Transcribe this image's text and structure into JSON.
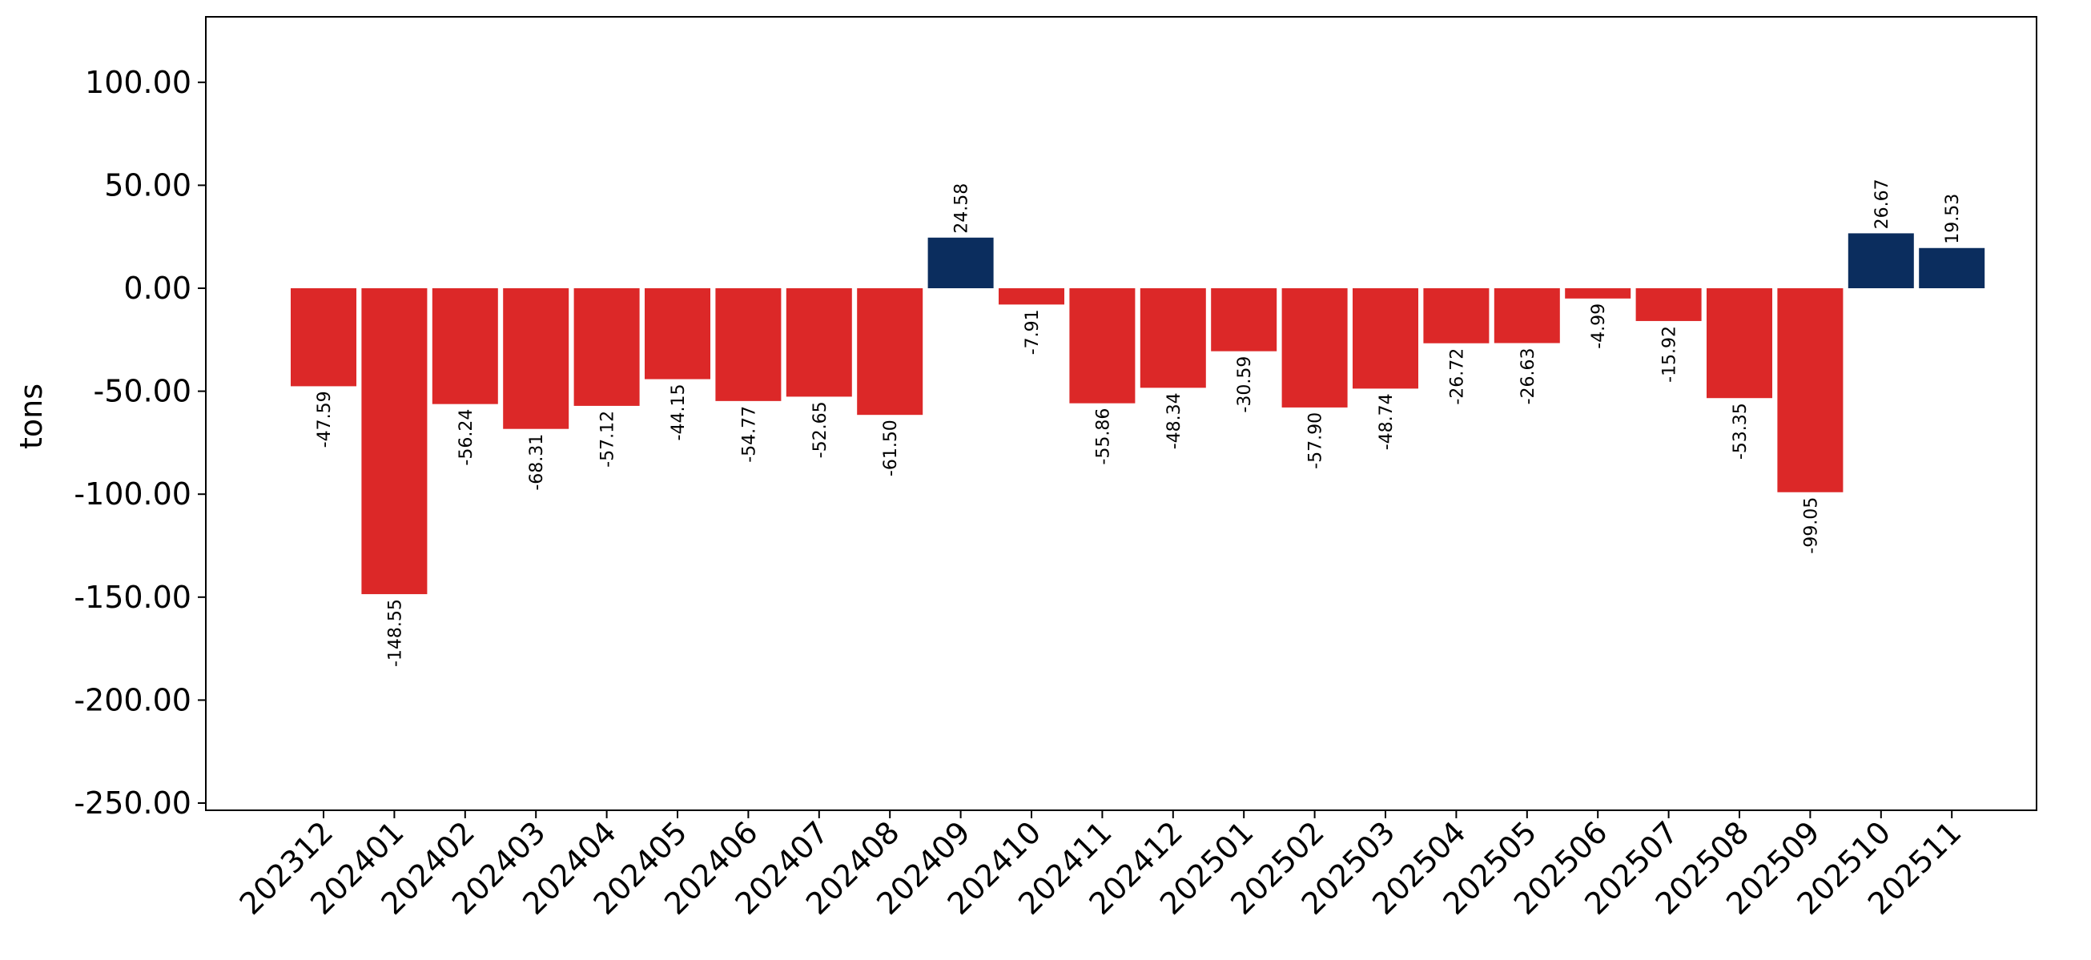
{
  "chart_data": {
    "type": "bar",
    "title": "",
    "xlabel": "",
    "ylabel": "tons",
    "ylim": [
      -255,
      132
    ],
    "yticks": [
      -250,
      -200,
      -150,
      -100,
      -50,
      0,
      50,
      100
    ],
    "ytick_labels": [
      "-250.00",
      "-200.00",
      "-150.00",
      "-100.00",
      "-50.00",
      "0.00",
      "50.00",
      "100.00"
    ],
    "categories": [
      "202312",
      "202401",
      "202402",
      "202403",
      "202404",
      "202405",
      "202406",
      "202407",
      "202408",
      "202409",
      "202410",
      "202411",
      "202412",
      "202501",
      "202502",
      "202503",
      "202504",
      "202505",
      "202506",
      "202507",
      "202508",
      "202509",
      "202510",
      "202511"
    ],
    "values": [
      -47.59,
      -148.55,
      -56.24,
      -68.31,
      -57.12,
      -44.15,
      -54.77,
      -52.65,
      -61.5,
      24.58,
      -7.91,
      -55.86,
      -48.34,
      -30.59,
      -57.9,
      -48.74,
      -26.72,
      -26.63,
      -4.99,
      -15.92,
      -53.35,
      -99.05,
      26.67,
      19.53
    ],
    "value_labels": [
      "-47.59",
      "-148.55",
      "-56.24",
      "-68.31",
      "-57.12",
      "-44.15",
      "-54.77",
      "-52.65",
      "-61.50",
      "24.58",
      "-7.91",
      "-55.86",
      "-48.34",
      "-30.59",
      "-57.90",
      "-48.74",
      "-26.72",
      "-26.63",
      "-4.99",
      "-15.92",
      "-53.35",
      "-99.05",
      "26.67",
      "19.53"
    ],
    "colors": {
      "positive": "#0b2d5e",
      "negative": "#dc2828"
    },
    "grid": false,
    "legend": "none"
  }
}
